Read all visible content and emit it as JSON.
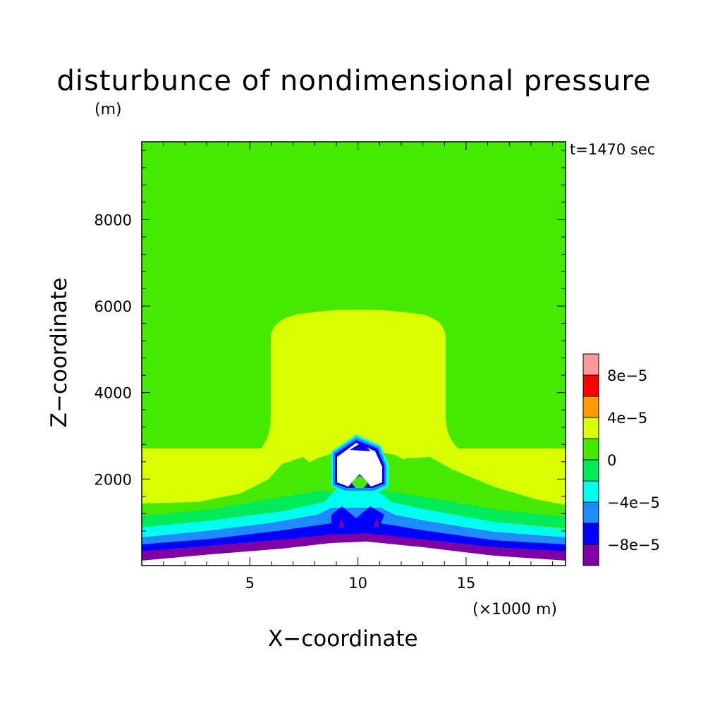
{
  "chart_data": {
    "type": "heatmap",
    "title": "disturbunce of nondimensional pressure",
    "ylabel": "Z−coordinate",
    "xlabel": "X−coordinate",
    "y_unit": "(m)",
    "x_unit": "(×1000 m)",
    "time_label": "t=1470 sec",
    "xlim": [
      0,
      19.6
    ],
    "ylim": [
      0,
      9800
    ],
    "x_ticks": [
      "5",
      "10",
      "15"
    ],
    "y_ticks": [
      "2000",
      "4000",
      "6000",
      "8000"
    ],
    "colorbar": {
      "levels": [
        -0.0001,
        -8e-05,
        -6e-05,
        -4e-05,
        -2e-05,
        0,
        2e-05,
        4e-05,
        6e-05,
        8e-05,
        0.0001
      ],
      "colors": [
        "#7f00a6",
        "#0000ff",
        "#1e8cff",
        "#00ffee",
        "#00ea5a",
        "#45ea00",
        "#d9ff00",
        "#ff9c00",
        "#ff0000",
        "#ff9999"
      ],
      "labels": [
        "8e−5",
        "4e−5",
        "0",
        "−4e−5",
        "−8e−5"
      ]
    },
    "regions": [
      {
        "level": 0,
        "description": "background"
      },
      {
        "level": 2e-05,
        "description": "upper dome and lower-left/right band"
      },
      {
        "level": -2e-05,
        "description": "band"
      },
      {
        "level": -4e-05,
        "description": "band"
      },
      {
        "level": -6e-05,
        "description": "band"
      },
      {
        "level": -8e-05,
        "description": "band"
      },
      {
        "level": -0.0001,
        "description": "lowest band"
      }
    ]
  }
}
